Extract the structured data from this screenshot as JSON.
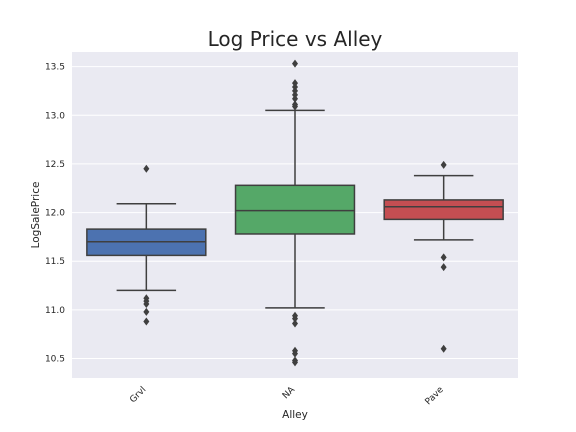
{
  "chart_data": {
    "type": "box",
    "title": "Log Price vs Alley",
    "xlabel": "Alley",
    "ylabel": "LogSalePrice",
    "ylim": [
      10.3,
      13.65
    ],
    "yticks": [
      10.5,
      11.0,
      11.5,
      12.0,
      12.5,
      13.0,
      13.5
    ],
    "ytick_labels": [
      "10.5",
      "11.0",
      "11.5",
      "12.0",
      "12.5",
      "13.0",
      "13.5"
    ],
    "grid": true,
    "categories": [
      "Grvl",
      "NA",
      "Pave"
    ],
    "colors": [
      "#4c72b0",
      "#55a868",
      "#c44e52"
    ],
    "boxes": [
      {
        "category": "Grvl",
        "whisker_low": 11.2,
        "q1": 11.56,
        "median": 11.7,
        "q3": 11.83,
        "whisker_high": 12.09,
        "outliers": [
          12.45,
          11.12,
          11.09,
          11.06,
          10.98,
          10.88
        ]
      },
      {
        "category": "NA",
        "whisker_low": 11.02,
        "q1": 11.78,
        "median": 12.02,
        "q3": 12.28,
        "whisker_high": 13.05,
        "outliers": [
          13.53,
          13.33,
          13.29,
          13.25,
          13.21,
          13.17,
          13.11,
          13.09,
          10.94,
          10.91,
          10.86,
          10.58,
          10.55,
          10.48,
          10.46
        ]
      },
      {
        "category": "Pave",
        "whisker_low": 11.72,
        "q1": 11.93,
        "median": 12.06,
        "q3": 12.13,
        "whisker_high": 12.38,
        "outliers": [
          12.49,
          11.54,
          11.44,
          10.6
        ]
      }
    ]
  }
}
